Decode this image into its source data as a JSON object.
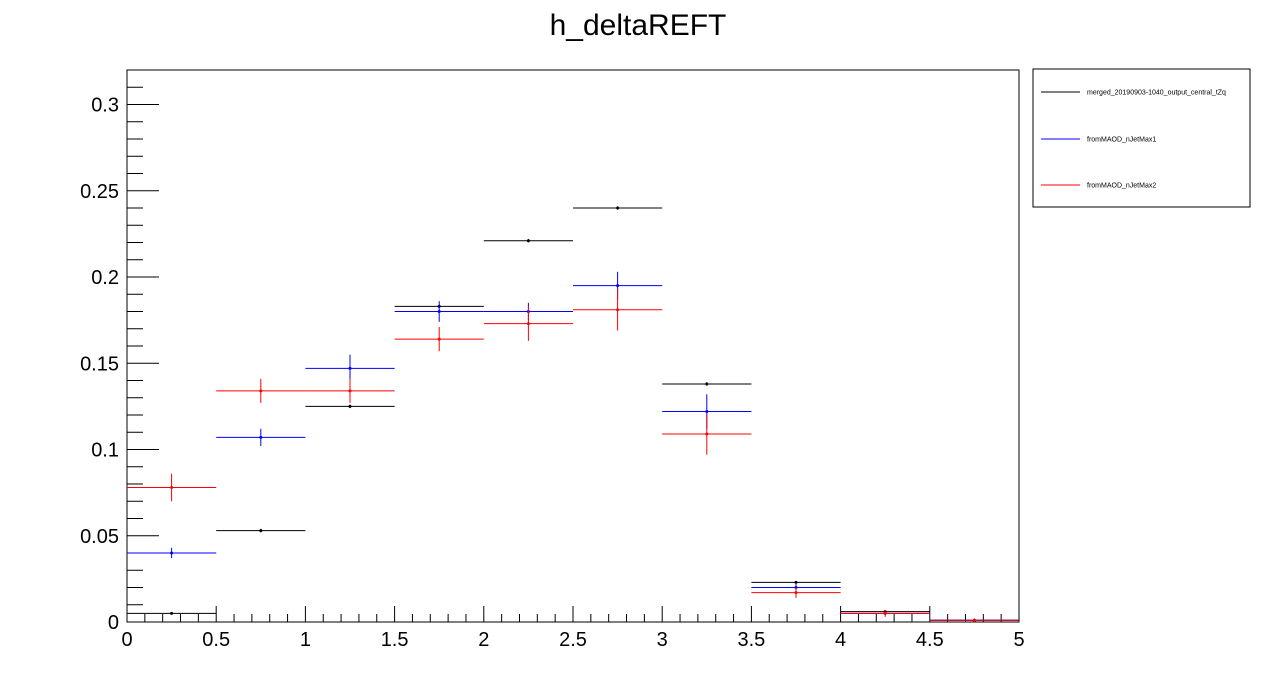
{
  "chart_data": {
    "type": "scatter",
    "title": "h_deltaREFT",
    "xlabel": "",
    "ylabel": "",
    "xlim": [
      0,
      5
    ],
    "ylim": [
      0,
      0.32
    ],
    "bin_width": 0.5,
    "x_ticks": [
      "0",
      "0.5",
      "1",
      "1.5",
      "2",
      "2.5",
      "3",
      "3.5",
      "4",
      "4.5",
      "5"
    ],
    "y_ticks": [
      "0",
      "0.05",
      "0.1",
      "0.15",
      "0.2",
      "0.25",
      "0.3"
    ],
    "legend_position": "top-right, outside plot",
    "series": [
      {
        "name": "merged_20190903-1040_output_central_tZq",
        "color": "#000000",
        "x": [
          0.25,
          0.75,
          1.25,
          1.75,
          2.25,
          2.75,
          3.25,
          3.75,
          4.25,
          4.75
        ],
        "y": [
          0.005,
          0.053,
          0.125,
          0.183,
          0.221,
          0.24,
          0.138,
          0.023,
          0.006,
          0.001
        ],
        "yerr": [
          0.0005,
          0.001,
          0.001,
          0.001,
          0.001,
          0.001,
          0.001,
          0.0005,
          0.0003,
          0.0001
        ]
      },
      {
        "name": "fromMAOD_nJetMax1",
        "color": "#0000ff",
        "x": [
          0.25,
          0.75,
          1.25,
          1.75,
          2.25,
          2.75,
          3.25,
          3.75,
          4.25,
          4.75
        ],
        "y": [
          0.04,
          0.107,
          0.147,
          0.18,
          0.18,
          0.195,
          0.122,
          0.02,
          0.005,
          0.001
        ],
        "yerr": [
          0.003,
          0.005,
          0.008,
          0.006,
          0.005,
          0.008,
          0.01,
          0.002,
          0.001,
          0.0005
        ]
      },
      {
        "name": "fromMAOD_nJetMax2",
        "color": "#ff0000",
        "x": [
          0.25,
          0.75,
          1.25,
          1.75,
          2.25,
          2.75,
          3.25,
          3.75,
          4.25,
          4.75
        ],
        "y": [
          0.078,
          0.134,
          0.134,
          0.164,
          0.173,
          0.181,
          0.109,
          0.017,
          0.005,
          0.001
        ],
        "yerr": [
          0.008,
          0.007,
          0.007,
          0.007,
          0.01,
          0.012,
          0.012,
          0.003,
          0.002,
          0.001
        ]
      }
    ]
  }
}
